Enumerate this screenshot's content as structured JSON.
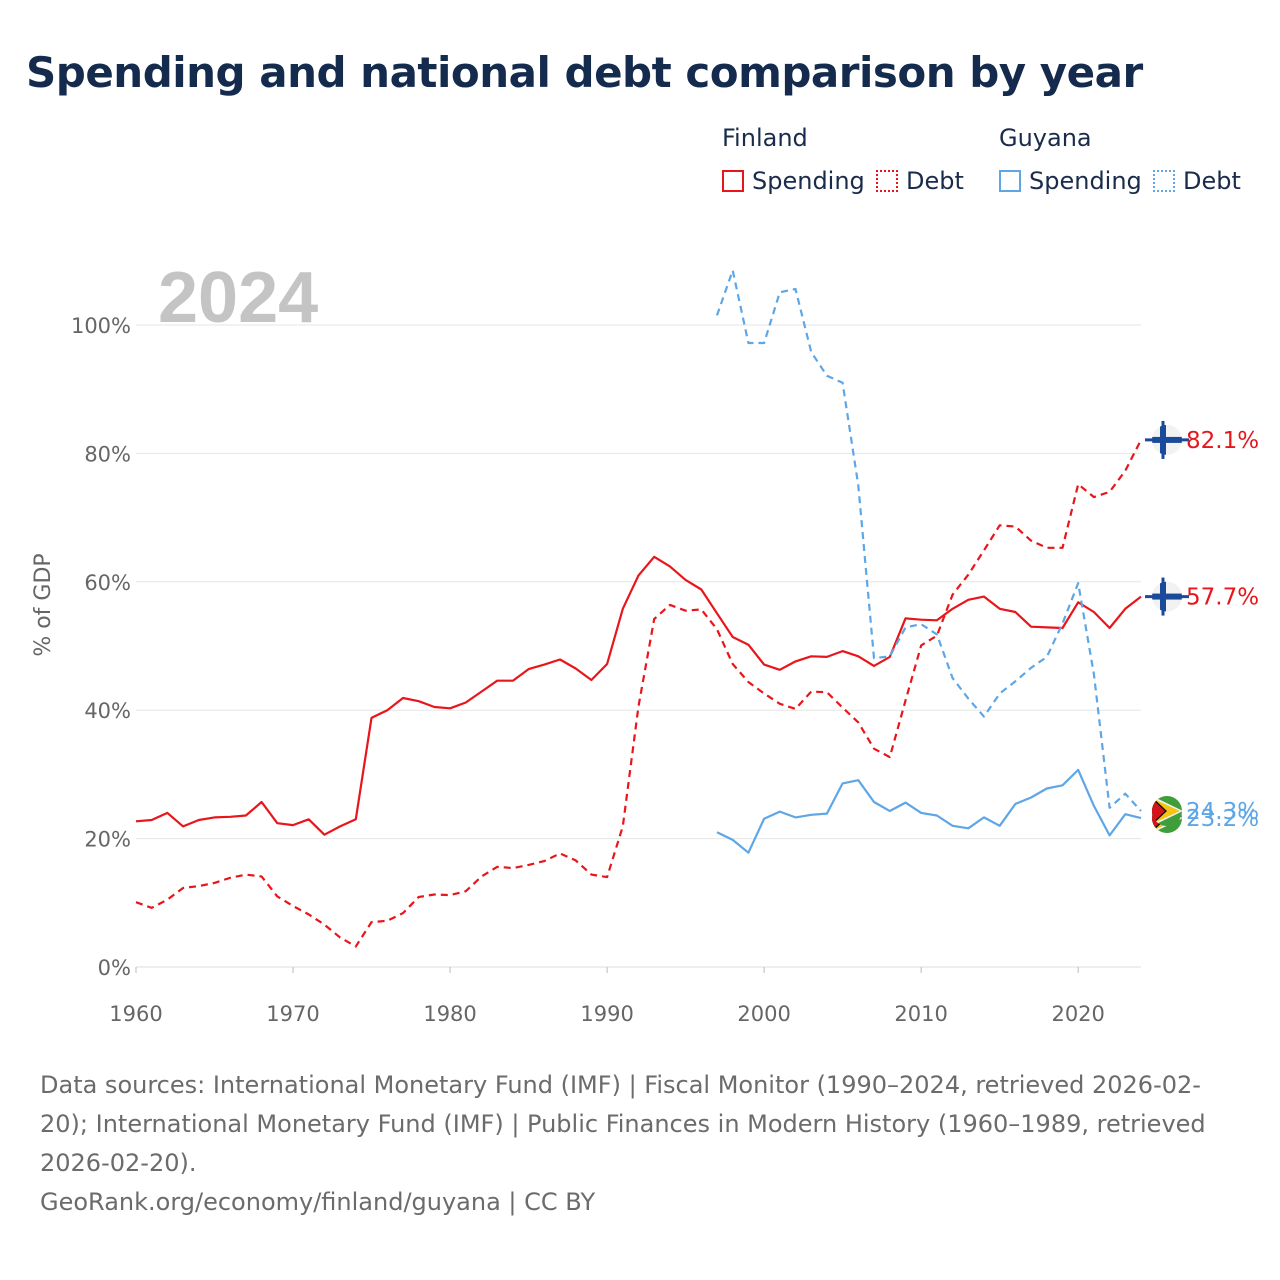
{
  "title": "Spending and national debt comparison by year",
  "legend": {
    "groups": [
      {
        "country": "Finland",
        "color": "#e8161b",
        "items": [
          "Spending",
          "Debt"
        ]
      },
      {
        "country": "Guyana",
        "color": "#5ea6e6",
        "items": [
          "Spending",
          "Debt"
        ]
      }
    ]
  },
  "year_watermark": "2024",
  "footer": {
    "sources": "Data sources: International Monetary Fund (IMF) | Fiscal Monitor (1990–2024, retrieved 2026-02-20); International Monetary Fund (IMF) | Public Finances in Modern History (1960–1989, retrieved 2026-02-20).",
    "credit": "GeoRank.org/economy/finland/guyana | CC BY"
  },
  "chart_data": {
    "type": "line",
    "title": "Spending and national debt comparison by year",
    "xlabel": "",
    "ylabel": "% of GDP",
    "xlim": [
      1960,
      2024
    ],
    "ylim": [
      0,
      110
    ],
    "x_ticks": [
      1960,
      1970,
      1980,
      1990,
      2000,
      2010,
      2020
    ],
    "y_ticks": [
      0,
      20,
      40,
      60,
      80,
      100
    ],
    "y_tick_labels": [
      "0%",
      "20%",
      "40%",
      "60%",
      "80%",
      "100%"
    ],
    "grid": true,
    "series": [
      {
        "name": "Finland Spending",
        "country": "Finland",
        "measure": "Spending",
        "color": "#e8161b",
        "style": "solid",
        "end_label": "57.7%",
        "flag": "finland",
        "x": [
          1960,
          1961,
          1962,
          1963,
          1964,
          1965,
          1966,
          1967,
          1968,
          1969,
          1970,
          1971,
          1972,
          1973,
          1974,
          1975,
          1976,
          1977,
          1978,
          1979,
          1980,
          1981,
          1982,
          1983,
          1984,
          1985,
          1986,
          1987,
          1988,
          1989,
          1990,
          1991,
          1992,
          1993,
          1994,
          1995,
          1996,
          1997,
          1998,
          1999,
          2000,
          2001,
          2002,
          2003,
          2004,
          2005,
          2006,
          2007,
          2008,
          2009,
          2010,
          2011,
          2012,
          2013,
          2014,
          2015,
          2016,
          2017,
          2018,
          2019,
          2020,
          2021,
          2022,
          2023,
          2024
        ],
        "values": [
          22.7,
          22.9,
          24.0,
          21.9,
          22.9,
          23.3,
          23.4,
          23.6,
          25.7,
          22.4,
          22.1,
          23.0,
          20.6,
          21.9,
          23.0,
          38.8,
          40.0,
          41.9,
          41.4,
          40.5,
          40.3,
          41.2,
          42.9,
          44.6,
          44.6,
          46.4,
          47.1,
          47.9,
          46.5,
          44.7,
          47.2,
          55.8,
          61.0,
          63.9,
          62.4,
          60.3,
          58.8,
          55.1,
          51.4,
          50.2,
          47.1,
          46.3,
          47.6,
          48.4,
          48.3,
          49.2,
          48.4,
          46.9,
          48.3,
          54.3,
          54.1,
          54.0,
          55.8,
          57.2,
          57.7,
          55.8,
          55.3,
          53.0,
          52.9,
          52.8,
          56.8,
          55.3,
          52.8,
          55.8,
          57.7
        ]
      },
      {
        "name": "Finland Debt",
        "country": "Finland",
        "measure": "Debt",
        "color": "#e8161b",
        "style": "dashed",
        "end_label": "82.1%",
        "flag": "finland",
        "x": [
          1960,
          1961,
          1962,
          1963,
          1964,
          1965,
          1966,
          1967,
          1968,
          1969,
          1970,
          1971,
          1972,
          1973,
          1974,
          1975,
          1976,
          1977,
          1978,
          1979,
          1980,
          1981,
          1982,
          1983,
          1984,
          1985,
          1986,
          1987,
          1988,
          1989,
          1990,
          1991,
          1992,
          1993,
          1994,
          1995,
          1996,
          1997,
          1998,
          1999,
          2000,
          2001,
          2002,
          2003,
          2004,
          2005,
          2006,
          2007,
          2008,
          2009,
          2010,
          2011,
          2012,
          2013,
          2014,
          2015,
          2016,
          2017,
          2018,
          2019,
          2020,
          2021,
          2022,
          2023,
          2024
        ],
        "values": [
          10.1,
          9.2,
          10.5,
          12.3,
          12.6,
          13.1,
          13.9,
          14.4,
          14.1,
          11.0,
          9.5,
          8.2,
          6.6,
          4.6,
          3.2,
          7.0,
          7.2,
          8.4,
          10.9,
          11.3,
          11.2,
          11.8,
          14.1,
          15.6,
          15.4,
          15.9,
          16.5,
          17.7,
          16.6,
          14.4,
          14.0,
          21.9,
          40.6,
          54.2,
          56.4,
          55.5,
          55.7,
          52.6,
          47.2,
          44.4,
          42.6,
          41.0,
          40.2,
          42.9,
          42.8,
          40.4,
          38.1,
          34.0,
          32.7,
          41.5,
          50.1,
          51.6,
          58.0,
          61.1,
          64.9,
          68.8,
          68.6,
          66.4,
          65.3,
          65.3,
          75.2,
          73.2,
          74.0,
          77.3,
          82.1
        ]
      },
      {
        "name": "Guyana Spending",
        "country": "Guyana",
        "measure": "Spending",
        "color": "#5ea6e6",
        "style": "solid",
        "end_label": "23.2%",
        "flag": "guyana",
        "x": [
          1997,
          1998,
          1999,
          2000,
          2001,
          2002,
          2003,
          2004,
          2005,
          2006,
          2007,
          2008,
          2009,
          2010,
          2011,
          2012,
          2013,
          2014,
          2015,
          2016,
          2017,
          2018,
          2019,
          2020,
          2021,
          2022,
          2023,
          2024
        ],
        "values": [
          21.0,
          19.8,
          17.8,
          23.1,
          24.2,
          23.3,
          23.7,
          23.9,
          28.6,
          29.1,
          25.7,
          24.3,
          25.6,
          24.0,
          23.6,
          22.0,
          21.6,
          23.3,
          22.0,
          25.4,
          26.4,
          27.8,
          28.3,
          30.7,
          25.1,
          20.5,
          23.8,
          23.2
        ]
      },
      {
        "name": "Guyana Debt",
        "country": "Guyana",
        "measure": "Debt",
        "color": "#5ea6e6",
        "style": "dashed",
        "end_label": "24.3%",
        "flag": "guyana",
        "x": [
          1997,
          1998,
          1999,
          2000,
          2001,
          2002,
          2003,
          2004,
          2005,
          2006,
          2007,
          2008,
          2009,
          2010,
          2011,
          2012,
          2013,
          2014,
          2015,
          2016,
          2017,
          2018,
          2019,
          2020,
          2021,
          2022,
          2023,
          2024
        ],
        "values": [
          101.5,
          108.5,
          97.2,
          97.2,
          105.1,
          105.6,
          95.8,
          92.1,
          91.0,
          75.0,
          48.1,
          48.4,
          52.9,
          53.4,
          51.8,
          45.0,
          41.8,
          39.0,
          42.6,
          44.5,
          46.6,
          48.3,
          53.5,
          59.8,
          45.6,
          24.8,
          27.0,
          24.3
        ]
      }
    ]
  }
}
